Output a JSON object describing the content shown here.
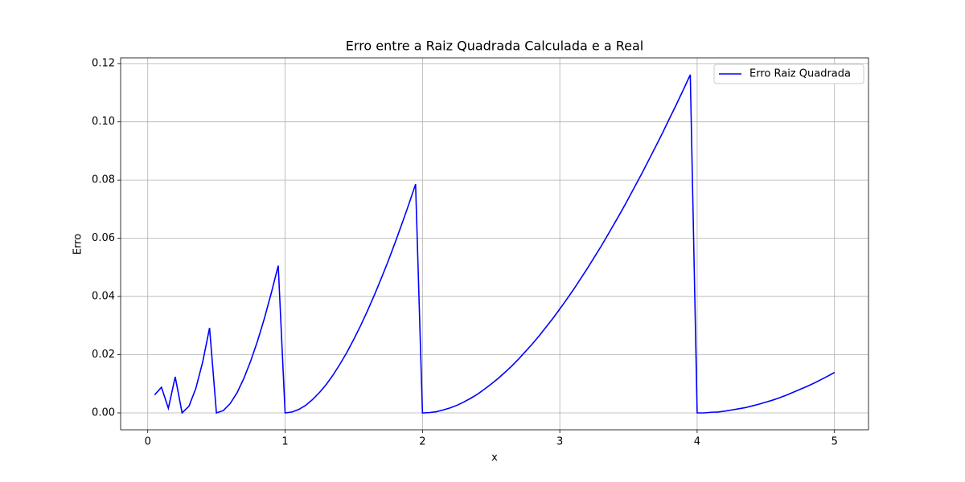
{
  "chart_data": {
    "type": "line",
    "title": "Erro entre a Raiz Quadrada Calculada e a Real",
    "x_label": "x",
    "y_label": "Erro",
    "x": [
      0.05,
      0.1,
      0.15,
      0.2,
      0.25,
      0.3,
      0.35,
      0.4,
      0.45,
      0.5,
      0.55,
      0.6,
      0.65,
      0.7,
      0.75,
      0.8,
      0.85,
      0.9,
      0.95,
      1.0,
      1.05,
      1.1,
      1.15,
      1.2,
      1.25,
      1.3,
      1.35,
      1.4,
      1.45,
      1.5,
      1.55,
      1.6,
      1.65,
      1.7,
      1.75,
      1.8,
      1.85,
      1.9,
      1.95,
      2.0,
      2.05,
      2.1,
      2.15,
      2.2,
      2.25,
      2.3,
      2.35,
      2.4,
      2.45,
      2.5,
      2.55,
      2.6,
      2.65,
      2.7,
      2.75,
      2.8,
      2.85,
      2.9,
      2.95,
      3.0,
      3.05,
      3.1,
      3.15,
      3.2,
      3.25,
      3.3,
      3.35,
      3.4,
      3.45,
      3.5,
      3.55,
      3.6,
      3.65,
      3.7,
      3.75,
      3.8,
      3.85,
      3.9,
      3.95,
      4.0,
      4.05,
      4.1,
      4.15,
      4.2,
      4.25,
      4.3,
      4.35,
      4.4,
      4.45,
      4.5,
      4.55,
      4.6,
      4.65,
      4.7,
      4.75,
      4.8,
      4.85,
      4.9,
      4.95,
      5.0
    ],
    "series": [
      {
        "name": "Erro Raiz Quadrada",
        "color": "#0000ff",
        "values": [
          0.0062,
          0.0088,
          0.0016,
          0.0124,
          0,
          0.0023,
          0.0084,
          0.0175,
          0.0292,
          0,
          0.0008,
          0.0032,
          0.0069,
          0.0119,
          0.0179,
          0.0248,
          0.0326,
          0.0413,
          0.0506,
          0,
          0.0003,
          0.0012,
          0.0026,
          0.0046,
          0.007,
          0.0098,
          0.0131,
          0.0168,
          0.0208,
          0.0253,
          0.03,
          0.0351,
          0.0405,
          0.0462,
          0.0521,
          0.0584,
          0.0649,
          0.0716,
          0.0786,
          0,
          0.0001,
          0.0004,
          0.001,
          0.0017,
          0.0026,
          0.0037,
          0.005,
          0.0064,
          0.0081,
          0.0099,
          0.0118,
          0.0139,
          0.0161,
          0.0185,
          0.0211,
          0.0237,
          0.0265,
          0.0295,
          0.0325,
          0.0357,
          0.039,
          0.0424,
          0.046,
          0.0496,
          0.0534,
          0.0572,
          0.0612,
          0.0653,
          0.0694,
          0.0737,
          0.0781,
          0.0825,
          0.0871,
          0.0917,
          0.0964,
          0.1013,
          0.1061,
          0.1111,
          0.1162,
          0,
          0,
          0.0002,
          0.0003,
          0.0006,
          0.001,
          0.0014,
          0.0018,
          0.0024,
          0.003,
          0.0037,
          0.0044,
          0.0052,
          0.0061,
          0.0071,
          0.0081,
          0.0091,
          0.0102,
          0.0114,
          0.0126,
          0.0139
        ]
      }
    ],
    "xlim": [
      -0.1975,
      5.2475
    ],
    "ylim": [
      -0.0058,
      0.122
    ],
    "xticks": [
      0,
      1,
      2,
      3,
      4,
      5
    ],
    "yticks": [
      {
        "value": 0,
        "label": "0.00"
      },
      {
        "value": 0.02,
        "label": "0.02"
      },
      {
        "value": 0.04,
        "label": "0.04"
      },
      {
        "value": 0.06,
        "label": "0.06"
      },
      {
        "value": 0.08,
        "label": "0.08"
      },
      {
        "value": 0.1,
        "label": "0.10"
      },
      {
        "value": 0.12,
        "label": "0.12"
      }
    ],
    "grid": true,
    "legend": "upper right"
  }
}
